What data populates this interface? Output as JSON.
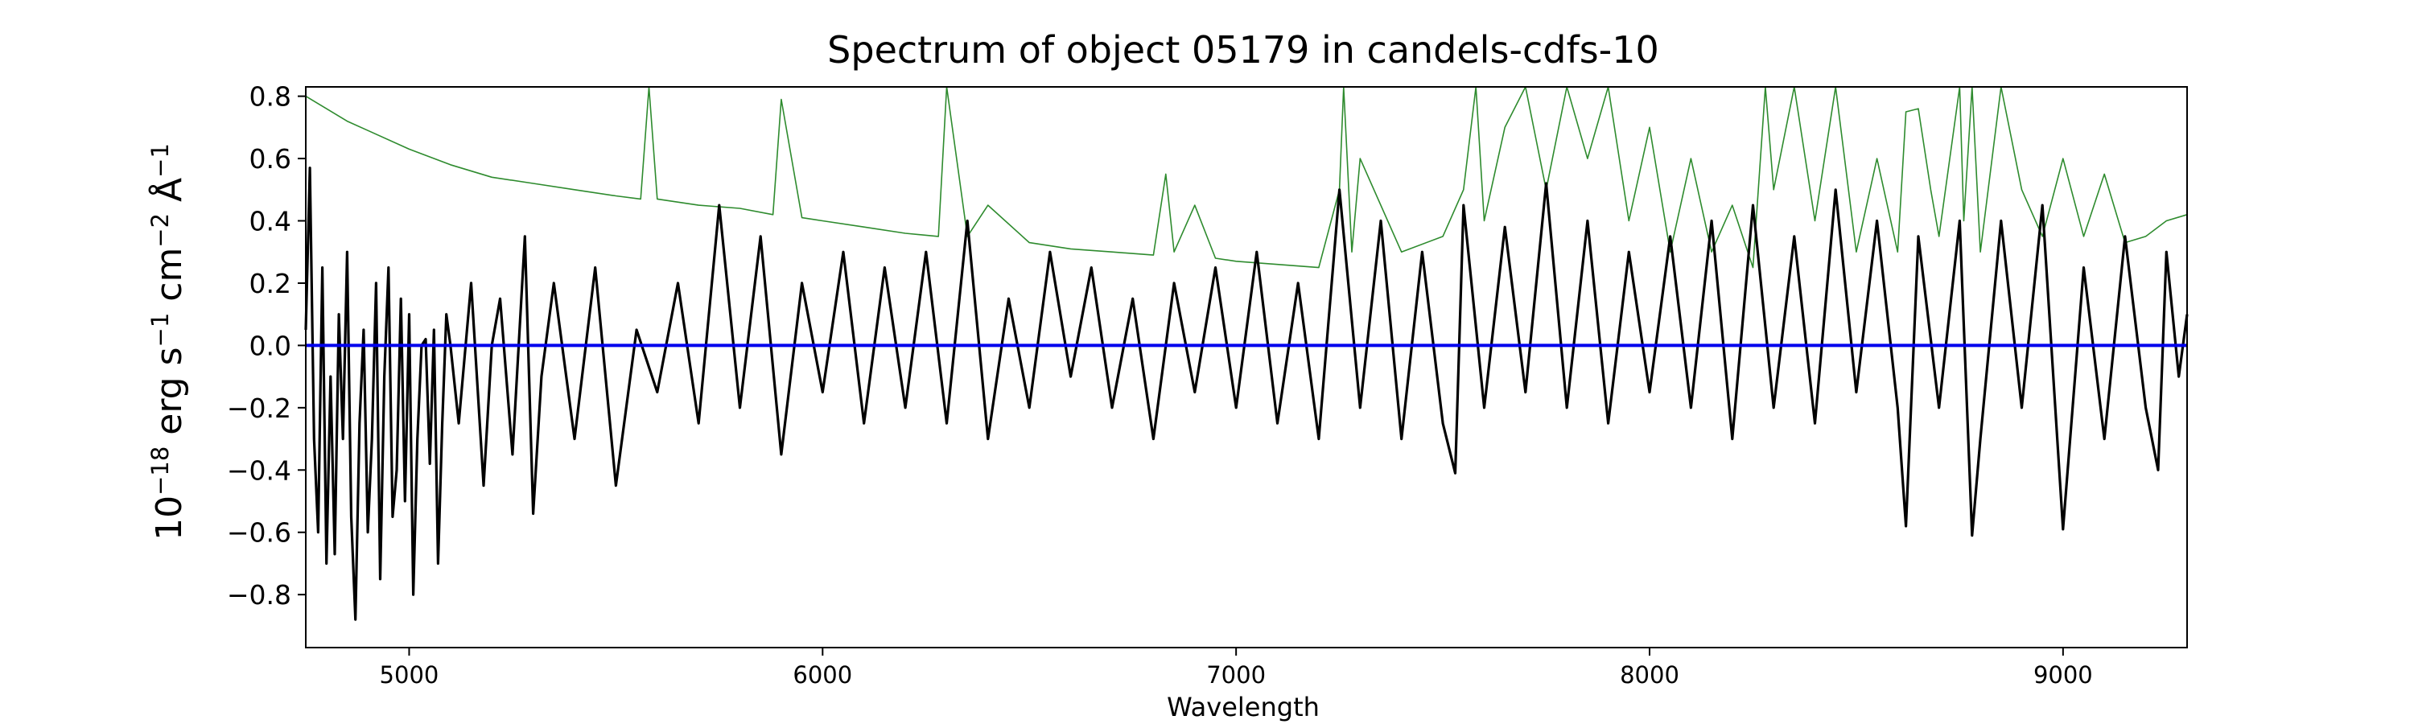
{
  "chart_data": {
    "type": "line",
    "title": "Spectrum of object 05179 in candels-cdfs-10",
    "xlabel": "Wavelength",
    "ylabel": {
      "base": "10",
      "base_exp": "−18",
      "unit1": " erg s",
      "unit1_exp": "−1",
      "unit2": " cm",
      "unit2_exp": "−2",
      "unit3": " Å",
      "unit3_exp": "−1"
    },
    "xlim": [
      4750,
      9300
    ],
    "ylim": [
      -0.97,
      0.83
    ],
    "xticks": [
      5000,
      6000,
      7000,
      8000,
      9000
    ],
    "xtick_labels": [
      "5000",
      "6000",
      "7000",
      "8000",
      "9000"
    ],
    "yticks": [
      -0.8,
      -0.6,
      -0.4,
      -0.2,
      0.0,
      0.2,
      0.4,
      0.6,
      0.8
    ],
    "ytick_labels": [
      "−0.8",
      "−0.6",
      "−0.4",
      "−0.2",
      "0.0",
      "0.2",
      "0.4",
      "0.6",
      "0.8"
    ],
    "grid": false,
    "legend": "none",
    "colors": {
      "flux": "#000000",
      "error": "#2e8b2e",
      "zero": "#0000ee"
    },
    "series": [
      {
        "role": "flux",
        "x": [
          4750,
          4760,
          4770,
          4780,
          4790,
          4800,
          4810,
          4820,
          4830,
          4840,
          4850,
          4860,
          4870,
          4880,
          4890,
          4900,
          4910,
          4920,
          4930,
          4940,
          4950,
          4960,
          4970,
          4980,
          4990,
          5000,
          5010,
          5020,
          5030,
          5040,
          5050,
          5060,
          5070,
          5080,
          5090,
          5100,
          5120,
          5150,
          5180,
          5200,
          5220,
          5250,
          5280,
          5300,
          5320,
          5350,
          5400,
          5450,
          5500,
          5550,
          5600,
          5650,
          5700,
          5750,
          5800,
          5850,
          5900,
          5950,
          6000,
          6050,
          6100,
          6150,
          6200,
          6250,
          6300,
          6350,
          6400,
          6450,
          6500,
          6550,
          6600,
          6650,
          6700,
          6750,
          6800,
          6850,
          6900,
          6950,
          7000,
          7050,
          7100,
          7150,
          7200,
          7250,
          7300,
          7350,
          7400,
          7450,
          7500,
          7530,
          7550,
          7600,
          7650,
          7700,
          7750,
          7800,
          7850,
          7900,
          7950,
          8000,
          8050,
          8100,
          8150,
          8200,
          8250,
          8300,
          8350,
          8400,
          8450,
          8500,
          8550,
          8600,
          8620,
          8650,
          8700,
          8750,
          8780,
          8800,
          8850,
          8900,
          8950,
          9000,
          9050,
          9100,
          9150,
          9200,
          9230,
          9250,
          9280,
          9300
        ],
        "y": [
          0.05,
          0.57,
          -0.3,
          -0.6,
          0.25,
          -0.7,
          -0.1,
          -0.67,
          0.1,
          -0.3,
          0.3,
          -0.55,
          -0.88,
          -0.25,
          0.05,
          -0.6,
          -0.3,
          0.2,
          -0.75,
          -0.1,
          0.25,
          -0.55,
          -0.4,
          0.15,
          -0.5,
          0.1,
          -0.8,
          -0.3,
          0.0,
          0.02,
          -0.38,
          0.05,
          -0.7,
          -0.25,
          0.1,
          0.0,
          -0.25,
          0.2,
          -0.45,
          0.0,
          0.15,
          -0.35,
          0.35,
          -0.54,
          -0.1,
          0.2,
          -0.3,
          0.25,
          -0.45,
          0.05,
          -0.15,
          0.2,
          -0.25,
          0.45,
          -0.2,
          0.35,
          -0.35,
          0.2,
          -0.15,
          0.3,
          -0.25,
          0.25,
          -0.2,
          0.3,
          -0.25,
          0.4,
          -0.3,
          0.15,
          -0.2,
          0.3,
          -0.1,
          0.25,
          -0.2,
          0.15,
          -0.3,
          0.2,
          -0.15,
          0.25,
          -0.2,
          0.3,
          -0.25,
          0.2,
          -0.3,
          0.5,
          -0.2,
          0.4,
          -0.3,
          0.3,
          -0.25,
          -0.41,
          0.45,
          -0.2,
          0.38,
          -0.15,
          0.52,
          -0.2,
          0.4,
          -0.25,
          0.3,
          -0.15,
          0.35,
          -0.2,
          0.4,
          -0.3,
          0.45,
          -0.2,
          0.35,
          -0.25,
          0.5,
          -0.15,
          0.4,
          -0.2,
          -0.58,
          0.35,
          -0.2,
          0.4,
          -0.61,
          -0.3,
          0.4,
          -0.2,
          0.45,
          -0.59,
          0.25,
          -0.3,
          0.35,
          -0.2,
          -0.4,
          0.3,
          -0.1,
          0.1
        ]
      },
      {
        "role": "error",
        "x": [
          4750,
          4800,
          4850,
          4900,
          5000,
          5100,
          5200,
          5300,
          5400,
          5500,
          5560,
          5580,
          5600,
          5700,
          5800,
          5880,
          5900,
          5950,
          6000,
          6100,
          6200,
          6280,
          6300,
          6350,
          6400,
          6500,
          6600,
          6700,
          6800,
          6830,
          6850,
          6900,
          6950,
          7000,
          7100,
          7200,
          7250,
          7260,
          7280,
          7300,
          7400,
          7500,
          7550,
          7580,
          7600,
          7650,
          7700,
          7750,
          7800,
          7850,
          7900,
          7950,
          8000,
          8050,
          8100,
          8150,
          8200,
          8250,
          8280,
          8300,
          8350,
          8400,
          8450,
          8500,
          8550,
          8600,
          8620,
          8650,
          8680,
          8700,
          8750,
          8760,
          8780,
          8800,
          8850,
          8900,
          8950,
          9000,
          9050,
          9100,
          9150,
          9200,
          9250,
          9300
        ],
        "y": [
          0.8,
          0.76,
          0.72,
          0.69,
          0.63,
          0.58,
          0.54,
          0.52,
          0.5,
          0.48,
          0.47,
          0.83,
          0.47,
          0.45,
          0.44,
          0.42,
          0.79,
          0.41,
          0.4,
          0.38,
          0.36,
          0.35,
          0.83,
          0.35,
          0.45,
          0.33,
          0.31,
          0.3,
          0.29,
          0.55,
          0.3,
          0.45,
          0.28,
          0.27,
          0.26,
          0.25,
          0.5,
          0.83,
          0.3,
          0.6,
          0.3,
          0.35,
          0.5,
          0.83,
          0.4,
          0.7,
          0.83,
          0.5,
          0.83,
          0.6,
          0.83,
          0.4,
          0.7,
          0.3,
          0.6,
          0.3,
          0.45,
          0.25,
          0.83,
          0.5,
          0.83,
          0.4,
          0.83,
          0.3,
          0.6,
          0.3,
          0.75,
          0.76,
          0.5,
          0.35,
          0.83,
          0.4,
          0.83,
          0.3,
          0.83,
          0.5,
          0.35,
          0.6,
          0.35,
          0.55,
          0.33,
          0.35,
          0.4,
          0.42
        ]
      },
      {
        "role": "zero",
        "x": [
          4750,
          9300
        ],
        "y": [
          0.0,
          0.0
        ]
      }
    ]
  }
}
